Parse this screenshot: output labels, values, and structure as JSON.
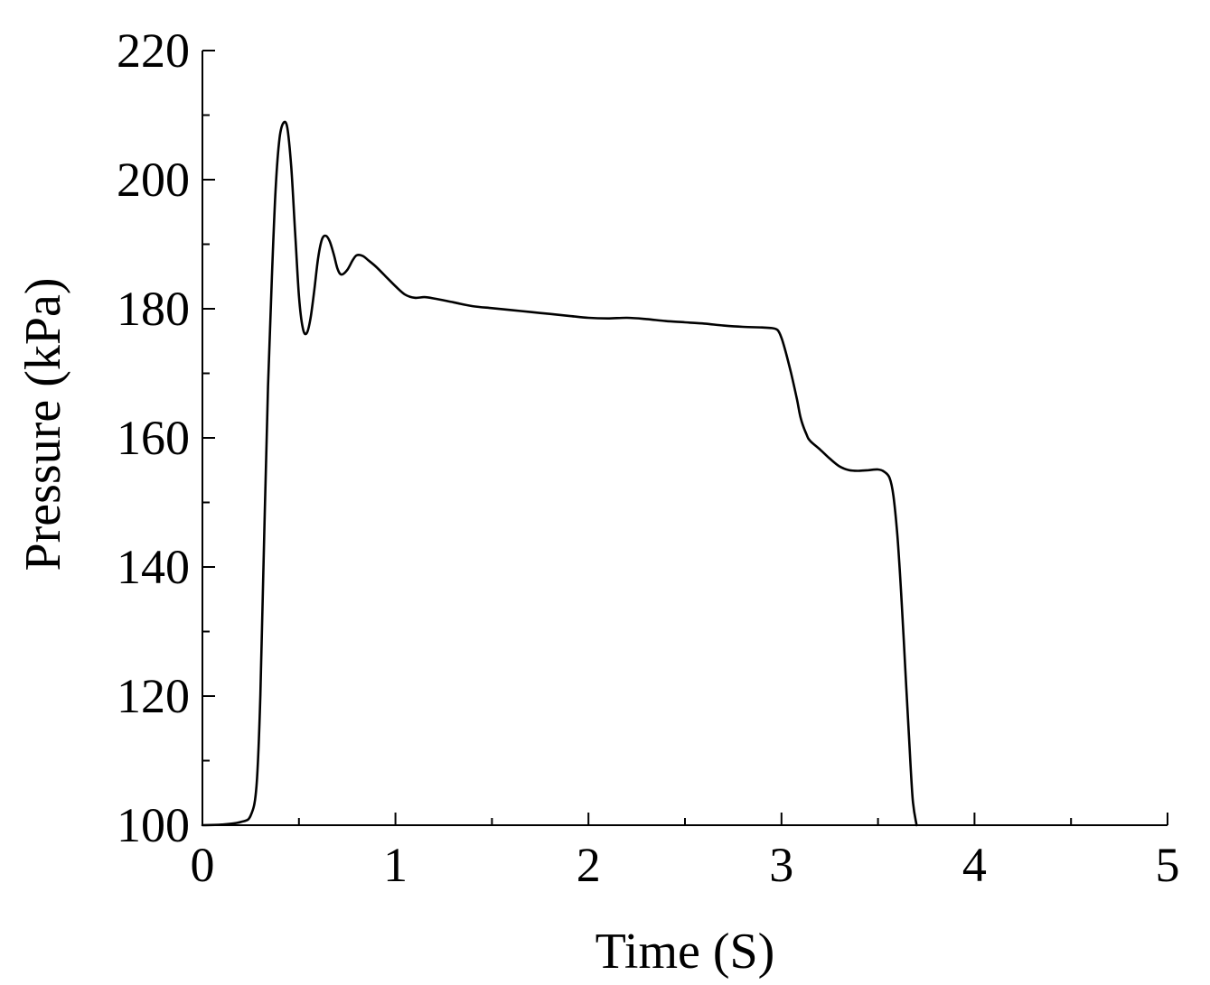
{
  "chart_data": {
    "type": "line",
    "title": "",
    "xlabel": "Time (S)",
    "ylabel": "Pressure (kPa)",
    "xlim": [
      0,
      5
    ],
    "ylim": [
      100,
      220
    ],
    "x_ticks": [
      0,
      1,
      2,
      3,
      4,
      5
    ],
    "y_ticks": [
      100,
      120,
      140,
      160,
      180,
      200,
      220
    ],
    "x_tick_labels": [
      "0",
      "1",
      "2",
      "3",
      "4",
      "5"
    ],
    "y_tick_labels": [
      "100",
      "120",
      "140",
      "160",
      "180",
      "200",
      "220"
    ],
    "x_minor_ticks": [
      0.5,
      1.5,
      2.5,
      3.5,
      4.5
    ],
    "y_minor_ticks": [
      110,
      130,
      150,
      170,
      190,
      210
    ],
    "grid": false,
    "legend": "none",
    "line_color": "#000000",
    "series": [
      {
        "x": [
          0.0,
          0.1,
          0.2,
          0.25,
          0.28,
          0.3,
          0.32,
          0.34,
          0.36,
          0.38,
          0.4,
          0.42,
          0.44,
          0.46,
          0.48,
          0.5,
          0.52,
          0.54,
          0.56,
          0.58,
          0.6,
          0.62,
          0.64,
          0.66,
          0.68,
          0.7,
          0.72,
          0.75,
          0.78,
          0.8,
          0.83,
          0.86,
          0.9,
          0.95,
          1.0,
          1.05,
          1.1,
          1.15,
          1.2,
          1.3,
          1.4,
          1.5,
          1.6,
          1.7,
          1.8,
          1.9,
          2.0,
          2.1,
          2.2,
          2.3,
          2.4,
          2.5,
          2.6,
          2.7,
          2.8,
          2.9,
          2.95,
          2.98,
          3.0,
          3.02,
          3.05,
          3.08,
          3.1,
          3.13,
          3.15,
          3.2,
          3.25,
          3.3,
          3.35,
          3.4,
          3.45,
          3.5,
          3.53,
          3.56,
          3.58,
          3.6,
          3.62,
          3.64,
          3.66,
          3.68,
          3.7
        ],
        "y": [
          100.0,
          100.1,
          100.5,
          101.5,
          106.0,
          120.0,
          145.0,
          168.0,
          185.0,
          199.0,
          206.5,
          208.8,
          208.0,
          202.0,
          192.0,
          182.0,
          177.0,
          176.2,
          178.5,
          183.0,
          188.0,
          190.8,
          191.3,
          190.4,
          188.5,
          186.2,
          185.3,
          186.0,
          187.6,
          188.3,
          188.2,
          187.5,
          186.5,
          185.0,
          183.5,
          182.2,
          181.7,
          181.8,
          181.6,
          181.0,
          180.4,
          180.1,
          179.8,
          179.5,
          179.2,
          178.9,
          178.6,
          178.5,
          178.6,
          178.4,
          178.1,
          177.9,
          177.7,
          177.4,
          177.2,
          177.1,
          177.0,
          176.7,
          175.5,
          173.5,
          170.0,
          166.0,
          163.0,
          160.5,
          159.5,
          158.2,
          156.8,
          155.6,
          155.0,
          154.9,
          155.0,
          155.1,
          154.8,
          153.8,
          151.0,
          145.0,
          136.0,
          125.0,
          114.0,
          104.0,
          100.0
        ]
      }
    ]
  }
}
